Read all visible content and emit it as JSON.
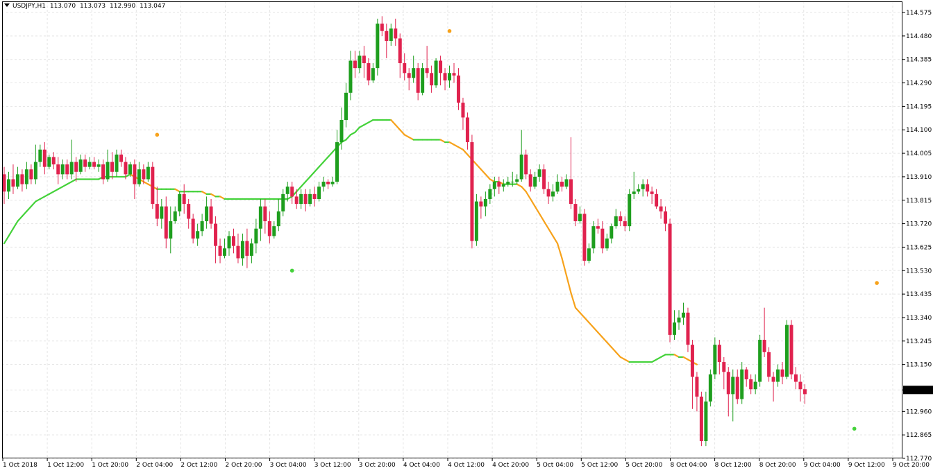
{
  "header": {
    "symbol": "USDJPY,H1",
    "open": "113.070",
    "high": "113.073",
    "low": "112.990",
    "close": "113.047"
  },
  "colors": {
    "bull": "#1e9e1e",
    "bear": "#e0224e",
    "ma_up": "#44d23a",
    "ma_down": "#f7a21b",
    "grid": "#e4e4e4",
    "price_tag_bg": "#000000",
    "price_tag_text": "#ffffff"
  },
  "chart_data": {
    "type": "candlestick",
    "ylim": [
      112.77,
      114.62
    ],
    "y_ticks": [
      "114.575",
      "114.480",
      "114.385",
      "114.290",
      "114.195",
      "114.100",
      "114.005",
      "113.910",
      "113.815",
      "113.720",
      "113.625",
      "113.530",
      "113.435",
      "113.340",
      "113.245",
      "113.150",
      "113.047",
      "112.960",
      "112.865",
      "112.770"
    ],
    "x_labels": [
      "1 Oct 2018",
      "1 Oct 12:00",
      "1 Oct 20:00",
      "2 Oct 04:00",
      "2 Oct 12:00",
      "2 Oct 20:00",
      "3 Oct 04:00",
      "3 Oct 12:00",
      "3 Oct 20:00",
      "4 Oct 04:00",
      "4 Oct 12:00",
      "4 Oct 20:00",
      "5 Oct 04:00",
      "5 Oct 12:00",
      "5 Oct 20:00",
      "8 Oct 04:00",
      "8 Oct 12:00",
      "8 Oct 20:00",
      "9 Oct 04:00",
      "9 Oct 12:00",
      "9 Oct 20:00"
    ],
    "current_price": "113.047",
    "candles": [
      [
        113.92,
        113.85,
        113.95,
        113.8
      ],
      [
        113.85,
        113.9,
        113.93,
        113.82
      ],
      [
        113.9,
        113.87,
        113.96,
        113.84
      ],
      [
        113.87,
        113.92,
        113.95,
        113.86
      ],
      [
        113.92,
        113.88,
        113.94,
        113.85
      ],
      [
        113.88,
        113.94,
        113.97,
        113.86
      ],
      [
        113.94,
        113.9,
        113.96,
        113.88
      ],
      [
        113.9,
        113.97,
        114.04,
        113.88
      ],
      [
        113.97,
        114.02,
        114.04,
        113.95
      ],
      [
        114.02,
        113.95,
        114.05,
        113.92
      ],
      [
        113.95,
        113.99,
        114.0,
        113.94
      ],
      [
        113.99,
        113.96,
        114.01,
        113.94
      ],
      [
        113.96,
        113.92,
        113.99,
        113.88
      ],
      [
        113.92,
        113.96,
        113.98,
        113.9
      ],
      [
        113.96,
        113.92,
        113.98,
        113.9
      ],
      [
        113.92,
        113.97,
        114.06,
        113.9
      ],
      [
        113.97,
        113.93,
        113.99,
        113.89
      ],
      [
        113.93,
        113.98,
        114.0,
        113.92
      ],
      [
        113.98,
        113.95,
        114.0,
        113.93
      ],
      [
        113.95,
        113.97,
        113.99,
        113.94
      ],
      [
        113.97,
        113.95,
        113.99,
        113.94
      ],
      [
        113.95,
        113.96,
        113.98,
        113.93
      ],
      [
        113.96,
        113.9,
        113.98,
        113.88
      ],
      [
        113.9,
        113.97,
        114.02,
        113.89
      ],
      [
        113.97,
        113.93,
        114.01,
        113.9
      ],
      [
        113.93,
        114.0,
        114.02,
        113.91
      ],
      [
        114.0,
        113.97,
        114.02,
        113.95
      ],
      [
        113.97,
        113.92,
        113.99,
        113.9
      ],
      [
        113.92,
        113.96,
        113.97,
        113.91
      ],
      [
        113.96,
        113.88,
        113.98,
        113.82
      ],
      [
        113.88,
        113.94,
        113.97,
        113.87
      ],
      [
        113.94,
        113.9,
        113.96,
        113.88
      ],
      [
        113.9,
        113.95,
        113.97,
        113.89
      ],
      [
        113.95,
        113.8,
        113.97,
        113.78
      ],
      [
        113.8,
        113.74,
        113.87,
        113.71
      ],
      [
        113.74,
        113.79,
        113.82,
        113.7
      ],
      [
        113.79,
        113.66,
        113.83,
        113.62
      ],
      [
        113.66,
        113.73,
        113.79,
        113.6
      ],
      [
        113.73,
        113.77,
        113.79,
        113.72
      ],
      [
        113.77,
        113.84,
        113.85,
        113.75
      ],
      [
        113.84,
        113.8,
        113.88,
        113.76
      ],
      [
        113.8,
        113.74,
        113.82,
        113.7
      ],
      [
        113.74,
        113.66,
        113.76,
        113.64
      ],
      [
        113.66,
        113.69,
        113.72,
        113.63
      ],
      [
        113.69,
        113.73,
        113.76,
        113.67
      ],
      [
        113.73,
        113.79,
        113.83,
        113.7
      ],
      [
        113.79,
        113.72,
        113.82,
        113.7
      ],
      [
        113.72,
        113.63,
        113.75,
        113.56
      ],
      [
        113.63,
        113.59,
        113.66,
        113.56
      ],
      [
        113.59,
        113.62,
        113.66,
        113.58
      ],
      [
        113.62,
        113.67,
        113.69,
        113.59
      ],
      [
        113.67,
        113.63,
        113.7,
        113.6
      ],
      [
        113.63,
        113.58,
        113.68,
        113.56
      ],
      [
        113.58,
        113.65,
        113.68,
        113.55
      ],
      [
        113.65,
        113.59,
        113.7,
        113.54
      ],
      [
        113.59,
        113.64,
        113.66,
        113.56
      ],
      [
        113.64,
        113.7,
        113.74,
        113.6
      ],
      [
        113.7,
        113.79,
        113.82,
        113.65
      ],
      [
        113.79,
        113.73,
        113.82,
        113.68
      ],
      [
        113.73,
        113.67,
        113.77,
        113.64
      ],
      [
        113.67,
        113.71,
        113.73,
        113.66
      ],
      [
        113.71,
        113.77,
        113.82,
        113.69
      ],
      [
        113.77,
        113.84,
        113.86,
        113.75
      ],
      [
        113.84,
        113.87,
        113.89,
        113.81
      ],
      [
        113.87,
        113.83,
        113.89,
        113.8
      ],
      [
        113.83,
        113.8,
        113.86,
        113.78
      ],
      [
        113.8,
        113.84,
        113.86,
        113.78
      ],
      [
        113.84,
        113.8,
        113.86,
        113.77
      ],
      [
        113.8,
        113.84,
        113.86,
        113.79
      ],
      [
        113.84,
        113.82,
        113.87,
        113.79
      ],
      [
        113.82,
        113.87,
        113.89,
        113.81
      ],
      [
        113.87,
        113.89,
        113.91,
        113.85
      ],
      [
        113.89,
        113.88,
        113.9,
        113.86
      ],
      [
        113.88,
        113.89,
        113.91,
        113.87
      ],
      [
        113.89,
        114.05,
        114.1,
        113.88
      ],
      [
        114.05,
        114.14,
        114.19,
        114.02
      ],
      [
        114.14,
        114.25,
        114.29,
        114.11
      ],
      [
        114.25,
        114.38,
        114.42,
        114.22
      ],
      [
        114.38,
        114.35,
        114.42,
        114.31
      ],
      [
        114.35,
        114.4,
        114.42,
        114.33
      ],
      [
        114.4,
        114.37,
        114.44,
        114.31
      ],
      [
        114.37,
        114.3,
        114.39,
        114.28
      ],
      [
        114.3,
        114.35,
        114.37,
        114.29
      ],
      [
        114.35,
        114.53,
        114.55,
        114.32
      ],
      [
        114.53,
        114.5,
        114.56,
        114.48
      ],
      [
        114.5,
        114.46,
        114.53,
        114.39
      ],
      [
        114.46,
        114.51,
        114.53,
        114.44
      ],
      [
        114.51,
        114.47,
        114.55,
        114.44
      ],
      [
        114.47,
        114.37,
        114.49,
        114.31
      ],
      [
        114.37,
        114.33,
        114.41,
        114.3
      ],
      [
        114.33,
        114.31,
        114.35,
        114.26
      ],
      [
        114.31,
        114.35,
        114.4,
        114.29
      ],
      [
        114.35,
        114.25,
        114.37,
        114.22
      ],
      [
        114.25,
        114.35,
        114.37,
        114.24
      ],
      [
        114.35,
        114.33,
        114.44,
        114.31
      ],
      [
        114.33,
        114.28,
        114.36,
        114.25
      ],
      [
        114.28,
        114.38,
        114.39,
        114.27
      ],
      [
        114.38,
        114.33,
        114.4,
        114.28
      ],
      [
        114.33,
        114.3,
        114.35,
        114.26
      ],
      [
        114.3,
        114.33,
        114.36,
        114.27
      ],
      [
        114.33,
        114.32,
        114.37,
        114.29
      ],
      [
        114.32,
        114.21,
        114.35,
        114.18
      ],
      [
        114.21,
        114.15,
        114.23,
        114.1
      ],
      [
        114.15,
        114.05,
        114.17,
        114.02
      ],
      [
        114.05,
        113.65,
        114.08,
        113.62
      ],
      [
        113.65,
        113.81,
        113.84,
        113.63
      ],
      [
        113.81,
        113.79,
        113.83,
        113.74
      ],
      [
        113.79,
        113.82,
        113.85,
        113.75
      ],
      [
        113.82,
        113.86,
        113.88,
        113.8
      ],
      [
        113.86,
        113.89,
        113.91,
        113.83
      ],
      [
        113.89,
        113.87,
        113.91,
        113.84
      ],
      [
        113.87,
        113.88,
        113.9,
        113.85
      ],
      [
        113.88,
        113.89,
        113.91,
        113.87
      ],
      [
        113.89,
        113.89,
        113.93,
        113.87
      ],
      [
        113.89,
        113.9,
        113.92,
        113.88
      ],
      [
        113.9,
        114.0,
        114.1,
        113.89
      ],
      [
        114.0,
        113.92,
        114.02,
        113.9
      ],
      [
        113.92,
        113.87,
        113.94,
        113.85
      ],
      [
        113.87,
        113.91,
        113.93,
        113.86
      ],
      [
        113.91,
        113.94,
        113.96,
        113.89
      ],
      [
        113.94,
        113.86,
        113.96,
        113.84
      ],
      [
        113.86,
        113.83,
        113.89,
        113.8
      ],
      [
        113.83,
        113.85,
        113.88,
        113.81
      ],
      [
        113.85,
        113.89,
        113.92,
        113.84
      ],
      [
        113.89,
        113.87,
        113.91,
        113.85
      ],
      [
        113.87,
        113.9,
        113.92,
        113.86
      ],
      [
        113.9,
        113.8,
        114.07,
        113.78
      ],
      [
        113.8,
        113.73,
        113.82,
        113.71
      ],
      [
        113.73,
        113.76,
        113.79,
        113.72
      ],
      [
        113.76,
        113.57,
        113.78,
        113.55
      ],
      [
        113.57,
        113.62,
        113.64,
        113.56
      ],
      [
        113.62,
        113.71,
        113.73,
        113.6
      ],
      [
        113.71,
        113.7,
        113.74,
        113.68
      ],
      [
        113.7,
        113.62,
        113.73,
        113.6
      ],
      [
        113.62,
        113.66,
        113.68,
        113.61
      ],
      [
        113.66,
        113.71,
        113.72,
        113.64
      ],
      [
        113.71,
        113.75,
        113.78,
        113.7
      ],
      [
        113.75,
        113.73,
        113.77,
        113.71
      ],
      [
        113.73,
        113.71,
        113.75,
        113.69
      ],
      [
        113.71,
        113.84,
        113.86,
        113.69
      ],
      [
        113.84,
        113.85,
        113.93,
        113.82
      ],
      [
        113.85,
        113.86,
        113.88,
        113.84
      ],
      [
        113.86,
        113.88,
        113.9,
        113.83
      ],
      [
        113.88,
        113.85,
        113.9,
        113.83
      ],
      [
        113.85,
        113.84,
        113.87,
        113.8
      ],
      [
        113.84,
        113.79,
        113.86,
        113.78
      ],
      [
        113.79,
        113.77,
        113.82,
        113.74
      ],
      [
        113.77,
        113.72,
        113.79,
        113.69
      ],
      [
        113.72,
        113.27,
        113.74,
        113.24
      ],
      [
        113.27,
        113.32,
        113.37,
        113.25
      ],
      [
        113.32,
        113.34,
        113.37,
        113.29
      ],
      [
        113.34,
        113.36,
        113.4,
        113.31
      ],
      [
        113.36,
        113.23,
        113.38,
        113.2
      ],
      [
        113.23,
        113.1,
        113.25,
        112.97
      ],
      [
        113.1,
        113.02,
        113.12,
        112.96
      ],
      [
        113.02,
        112.84,
        113.04,
        112.82
      ],
      [
        112.84,
        113.0,
        113.04,
        112.82
      ],
      [
        113.0,
        113.11,
        113.13,
        112.98
      ],
      [
        113.11,
        113.23,
        113.26,
        113.09
      ],
      [
        113.23,
        113.16,
        113.25,
        113.11
      ],
      [
        113.16,
        113.12,
        113.18,
        113.05
      ],
      [
        113.12,
        113.03,
        113.14,
        112.94
      ],
      [
        113.03,
        113.1,
        113.13,
        112.92
      ],
      [
        113.1,
        113.01,
        113.13,
        112.99
      ],
      [
        113.01,
        113.13,
        113.16,
        112.99
      ],
      [
        113.13,
        113.09,
        113.14,
        113.06
      ],
      [
        113.09,
        113.05,
        113.11,
        113.03
      ],
      [
        113.05,
        113.08,
        113.11,
        113.03
      ],
      [
        113.08,
        113.25,
        113.27,
        113.06
      ],
      [
        113.25,
        113.2,
        113.38,
        113.18
      ],
      [
        113.2,
        113.1,
        113.22,
        113.08
      ],
      [
        113.1,
        113.08,
        113.12,
        113.0
      ],
      [
        113.08,
        113.13,
        113.15,
        113.06
      ],
      [
        113.13,
        113.1,
        113.16,
        113.07
      ],
      [
        113.1,
        113.31,
        113.33,
        113.09
      ],
      [
        113.31,
        113.11,
        113.33,
        113.09
      ],
      [
        113.11,
        113.08,
        113.14,
        113.05
      ],
      [
        113.08,
        113.05,
        113.11,
        113.0
      ],
      [
        113.05,
        113.03,
        113.07,
        112.99
      ]
    ],
    "ma": [
      113.64,
      113.67,
      113.7,
      113.73,
      113.75,
      113.77,
      113.79,
      113.81,
      113.82,
      113.83,
      113.84,
      113.85,
      113.86,
      113.87,
      113.88,
      113.89,
      113.9,
      113.9,
      113.9,
      113.9,
      113.9,
      113.9,
      113.91,
      113.91,
      113.91,
      113.91,
      113.91,
      113.91,
      113.92,
      113.91,
      113.9,
      113.89,
      113.88,
      113.87,
      113.86,
      113.86,
      113.86,
      113.86,
      113.86,
      113.85,
      113.85,
      113.85,
      113.85,
      113.85,
      113.85,
      113.84,
      113.84,
      113.83,
      113.83,
      113.82,
      113.82,
      113.82,
      113.82,
      113.82,
      113.82,
      113.82,
      113.82,
      113.82,
      113.82,
      113.82,
      113.82,
      113.82,
      113.82,
      113.82,
      113.83,
      113.85,
      113.87,
      113.89,
      113.91,
      113.93,
      113.95,
      113.97,
      113.99,
      114.01,
      114.03,
      114.05,
      114.06,
      114.08,
      114.09,
      114.11,
      114.12,
      114.13,
      114.14,
      114.14,
      114.14,
      114.14,
      114.14,
      114.12,
      114.1,
      114.08,
      114.07,
      114.06,
      114.06,
      114.06,
      114.06,
      114.06,
      114.06,
      114.06,
      114.05,
      114.05,
      114.04,
      114.03,
      114.02,
      114.0,
      113.98,
      113.96,
      113.94,
      113.92,
      113.9,
      113.89,
      113.89,
      113.88,
      113.88,
      113.88,
      113.88,
      113.87,
      113.85,
      113.82,
      113.79,
      113.76,
      113.73,
      113.7,
      113.67,
      113.64,
      113.58,
      113.51,
      113.44,
      113.38,
      113.36,
      113.34,
      113.32,
      113.3,
      113.28,
      113.26,
      113.24,
      113.22,
      113.2,
      113.18,
      113.17,
      113.16,
      113.16,
      113.16,
      113.16,
      113.16,
      113.16,
      113.17,
      113.18,
      113.19,
      113.19,
      113.19,
      113.18,
      113.18,
      113.17,
      113.16,
      113.15
    ],
    "dots": [
      {
        "i": 34,
        "price": 114.08,
        "color": "ma_down"
      },
      {
        "i": 64,
        "price": 113.53,
        "color": "ma_up"
      },
      {
        "i": 99,
        "price": 114.5,
        "color": "ma_down"
      },
      {
        "i": 189,
        "price": 112.89,
        "color": "ma_up"
      },
      {
        "i": 194,
        "price": 113.48,
        "color": "ma_down"
      }
    ]
  }
}
